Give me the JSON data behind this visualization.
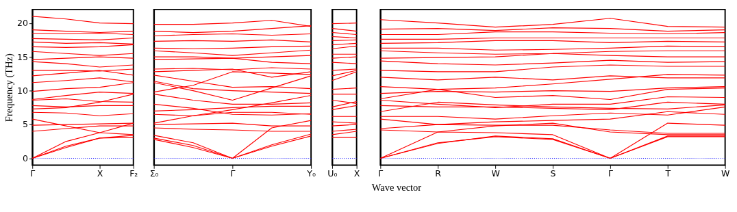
{
  "chart_data": [
    {
      "type": "line",
      "ylabel": "Frequency (THz)",
      "categories": [
        "Γ",
        null,
        "X",
        "F₂"
      ],
      "ylim": [
        -1,
        22
      ],
      "yticks": [
        0,
        5,
        10,
        15,
        20
      ],
      "ref_lines": [
        {
          "axis": "y",
          "value": 0,
          "color": "#0000ff",
          "line_style": "dotted"
        }
      ],
      "series": [
        {
          "color": "#ff0000",
          "values": [
            0,
            1.8,
            3.0,
            3.1
          ]
        },
        {
          "color": "#ff0000",
          "values": [
            0,
            1.6,
            3.0,
            3.4
          ]
        },
        {
          "color": "#ff0000",
          "values": [
            0,
            2.5,
            3.8,
            5.2
          ]
        },
        {
          "color": "#ff0000",
          "values": [
            4.0,
            4.4,
            4.8,
            4.8
          ]
        },
        {
          "color": "#ff0000",
          "values": [
            4.9,
            5.0,
            5.1,
            5.2
          ]
        },
        {
          "color": "#ff0000",
          "values": [
            5.8,
            4.8,
            3.8,
            3.5
          ]
        },
        {
          "color": "#ff0000",
          "values": [
            6.8,
            6.7,
            6.3,
            6.6
          ]
        },
        {
          "color": "#ff0000",
          "values": [
            7.3,
            7.5,
            8.3,
            9.5
          ]
        },
        {
          "color": "#ff0000",
          "values": [
            7.8,
            7.6,
            7.8,
            7.8
          ]
        },
        {
          "color": "#ff0000",
          "values": [
            8.6,
            8.8,
            8.4,
            8.3
          ]
        },
        {
          "color": "#ff0000",
          "values": [
            8.7,
            9.3,
            9.8,
            9.6
          ]
        },
        {
          "color": "#ff0000",
          "values": [
            9.9,
            10.3,
            10.5,
            11.2
          ]
        },
        {
          "color": "#ff0000",
          "values": [
            11.2,
            11.5,
            11.9,
            11.3
          ]
        },
        {
          "color": "#ff0000",
          "values": [
            12.2,
            12.6,
            13.0,
            12.3
          ]
        },
        {
          "color": "#ff0000",
          "values": [
            13.0,
            13.0,
            12.9,
            13.2
          ]
        },
        {
          "color": "#ff0000",
          "values": [
            14.3,
            14.0,
            13.5,
            13.8
          ]
        },
        {
          "color": "#ff0000",
          "values": [
            14.6,
            14.8,
            15.0,
            14.8
          ]
        },
        {
          "color": "#ff0000",
          "values": [
            15.8,
            15.5,
            15.2,
            15.5
          ]
        },
        {
          "color": "#ff0000",
          "values": [
            16.5,
            16.4,
            16.5,
            16.8
          ]
        },
        {
          "color": "#ff0000",
          "values": [
            17.2,
            17.0,
            17.1,
            16.9
          ]
        },
        {
          "color": "#ff0000",
          "values": [
            17.7,
            17.6,
            17.5,
            17.8
          ]
        },
        {
          "color": "#ff0000",
          "values": [
            18.5,
            18.4,
            18.5,
            18.3
          ]
        },
        {
          "color": "#ff0000",
          "values": [
            19.0,
            18.8,
            18.6,
            18.8
          ]
        },
        {
          "color": "#ff0000",
          "values": [
            21.0,
            20.6,
            20.0,
            19.9
          ]
        }
      ]
    },
    {
      "type": "line",
      "tick_labels": "x",
      "categories": [
        "Σ₀",
        null,
        "Γ",
        null,
        "Y₀"
      ],
      "ylim": [
        -1,
        22
      ],
      "yticks": [
        0,
        5,
        10,
        15,
        20
      ],
      "ref_lines": [
        {
          "axis": "y",
          "value": 0,
          "color": "#0000ff",
          "line_style": "dotted"
        }
      ],
      "series": [
        {
          "color": "#ff0000",
          "values": [
            2.8,
            1.6,
            0,
            1.8,
            3.3
          ]
        },
        {
          "color": "#ff0000",
          "values": [
            3.0,
            1.9,
            0,
            2.0,
            3.6
          ]
        },
        {
          "color": "#ff0000",
          "values": [
            3.4,
            2.3,
            0,
            4.5,
            5.6
          ]
        },
        {
          "color": "#ff0000",
          "values": [
            4.5,
            4.3,
            4.2,
            4.0,
            4.0
          ]
        },
        {
          "color": "#ff0000",
          "values": [
            5.0,
            5.1,
            5.2,
            4.8,
            4.8
          ]
        },
        {
          "color": "#ff0000",
          "values": [
            5.2,
            6.3,
            7.2,
            8.2,
            9.3
          ]
        },
        {
          "color": "#ff0000",
          "values": [
            6.5,
            6.3,
            6.8,
            6.8,
            6.5
          ]
        },
        {
          "color": "#ff0000",
          "values": [
            7.0,
            7.2,
            7.5,
            7.7,
            7.7
          ]
        },
        {
          "color": "#ff0000",
          "values": [
            8.0,
            7.4,
            6.5,
            6.4,
            6.6
          ]
        },
        {
          "color": "#ff0000",
          "values": [
            9.5,
            8.6,
            8.0,
            8.0,
            8.2
          ]
        },
        {
          "color": "#ff0000",
          "values": [
            9.8,
            10.8,
            12.8,
            12.6,
            12.4
          ]
        },
        {
          "color": "#ff0000",
          "values": [
            11.2,
            10.0,
            8.6,
            10.4,
            12.2
          ]
        },
        {
          "color": "#ff0000",
          "values": [
            11.4,
            10.3,
            10.0,
            9.8,
            9.6
          ]
        },
        {
          "color": "#ff0000",
          "values": [
            12.3,
            11.4,
            10.5,
            10.6,
            10.3
          ]
        },
        {
          "color": "#ff0000",
          "values": [
            12.8,
            13.0,
            13.2,
            12.0,
            12.8
          ]
        },
        {
          "color": "#ff0000",
          "values": [
            13.2,
            13.3,
            13.1,
            13.4,
            13.2
          ]
        },
        {
          "color": "#ff0000",
          "values": [
            14.6,
            14.7,
            14.8,
            14.2,
            14.0
          ]
        },
        {
          "color": "#ff0000",
          "values": [
            15.0,
            15.0,
            14.8,
            15.0,
            15.2
          ]
        },
        {
          "color": "#ff0000",
          "values": [
            15.9,
            15.6,
            15.2,
            15.6,
            16.0
          ]
        },
        {
          "color": "#ff0000",
          "values": [
            16.3,
            16.2,
            16.3,
            16.5,
            16.6
          ]
        },
        {
          "color": "#ff0000",
          "values": [
            17.3,
            17.4,
            17.3,
            17.5,
            17.2
          ]
        },
        {
          "color": "#ff0000",
          "values": [
            18.1,
            18.3,
            18.4,
            18.2,
            18.4
          ]
        },
        {
          "color": "#ff0000",
          "values": [
            18.8,
            18.6,
            18.8,
            19.2,
            19.6
          ]
        },
        {
          "color": "#ff0000",
          "values": [
            19.8,
            19.8,
            20.0,
            20.4,
            19.5
          ]
        }
      ]
    },
    {
      "type": "line",
      "tick_labels": "x",
      "categories": [
        "U₀",
        "X"
      ],
      "ylim": [
        -1,
        22
      ],
      "yticks": [
        0,
        5,
        10,
        15,
        20
      ],
      "ref_lines": [
        {
          "axis": "y",
          "value": 0,
          "color": "#0000ff",
          "line_style": "dotted"
        }
      ],
      "series": [
        {
          "color": "#ff0000",
          "values": [
            3.1,
            3.1
          ]
        },
        {
          "color": "#ff0000",
          "values": [
            3.5,
            4.0
          ]
        },
        {
          "color": "#ff0000",
          "values": [
            4.0,
            4.3
          ]
        },
        {
          "color": "#ff0000",
          "values": [
            4.8,
            5.0
          ]
        },
        {
          "color": "#ff0000",
          "values": [
            5.4,
            5.2
          ]
        },
        {
          "color": "#ff0000",
          "values": [
            6.2,
            6.2
          ]
        },
        {
          "color": "#ff0000",
          "values": [
            7.2,
            7.8
          ]
        },
        {
          "color": "#ff0000",
          "values": [
            7.6,
            8.4
          ]
        },
        {
          "color": "#ff0000",
          "values": [
            8.6,
            8.1
          ]
        },
        {
          "color": "#ff0000",
          "values": [
            9.5,
            9.5
          ]
        },
        {
          "color": "#ff0000",
          "values": [
            10.2,
            10.4
          ]
        },
        {
          "color": "#ff0000",
          "values": [
            11.5,
            12.8
          ]
        },
        {
          "color": "#ff0000",
          "values": [
            12.2,
            13.0
          ]
        },
        {
          "color": "#ff0000",
          "values": [
            13.0,
            13.2
          ]
        },
        {
          "color": "#ff0000",
          "values": [
            14.2,
            14.0
          ]
        },
        {
          "color": "#ff0000",
          "values": [
            14.8,
            15.0
          ]
        },
        {
          "color": "#ff0000",
          "values": [
            15.4,
            15.4
          ]
        },
        {
          "color": "#ff0000",
          "values": [
            16.2,
            16.6
          ]
        },
        {
          "color": "#ff0000",
          "values": [
            16.8,
            17.0
          ]
        },
        {
          "color": "#ff0000",
          "values": [
            17.4,
            17.5
          ]
        },
        {
          "color": "#ff0000",
          "values": [
            18.0,
            17.8
          ]
        },
        {
          "color": "#ff0000",
          "values": [
            18.6,
            18.3
          ]
        },
        {
          "color": "#ff0000",
          "values": [
            19.2,
            18.8
          ]
        },
        {
          "color": "#ff0000",
          "values": [
            19.9,
            20.0
          ]
        }
      ]
    },
    {
      "type": "line",
      "tick_labels": "x",
      "xlabel": "Wave vector",
      "categories": [
        "Γ",
        "R",
        "W",
        "S",
        "Γ",
        "T",
        "W"
      ],
      "ylim": [
        -1,
        22
      ],
      "yticks": [
        0,
        5,
        10,
        15,
        20
      ],
      "ref_lines": [
        {
          "axis": "y",
          "value": 0,
          "color": "#0000ff",
          "line_style": "dotted"
        }
      ],
      "series": [
        {
          "color": "#ff0000",
          "values": [
            0,
            2.3,
            3.2,
            2.8,
            0,
            3.2,
            3.2
          ]
        },
        {
          "color": "#ff0000",
          "values": [
            0,
            2.2,
            3.3,
            2.9,
            0,
            3.3,
            3.3
          ]
        },
        {
          "color": "#ff0000",
          "values": [
            0,
            3.9,
            3.8,
            3.5,
            0,
            5.2,
            4.9
          ]
        },
        {
          "color": "#ff0000",
          "values": [
            4.2,
            3.9,
            4.8,
            5.2,
            3.9,
            3.5,
            3.5
          ]
        },
        {
          "color": "#ff0000",
          "values": [
            4.4,
            5.0,
            4.9,
            4.9,
            4.2,
            3.7,
            3.7
          ]
        },
        {
          "color": "#ff0000",
          "values": [
            5.8,
            5.0,
            5.4,
            5.6,
            5.8,
            6.9,
            6.5
          ]
        },
        {
          "color": "#ff0000",
          "values": [
            6.2,
            6.2,
            5.8,
            6.3,
            6.7,
            6.4,
            7.6
          ]
        },
        {
          "color": "#ff0000",
          "values": [
            6.9,
            8.3,
            7.9,
            7.6,
            7.4,
            7.3,
            7.9
          ]
        },
        {
          "color": "#ff0000",
          "values": [
            7.8,
            7.6,
            7.6,
            7.4,
            7.2,
            8.3,
            8.0
          ]
        },
        {
          "color": "#ff0000",
          "values": [
            8.6,
            8.0,
            7.5,
            8.0,
            8.0,
            9.1,
            9.0
          ]
        },
        {
          "color": "#ff0000",
          "values": [
            8.8,
            10.2,
            9.0,
            9.3,
            8.7,
            10.2,
            10.4
          ]
        },
        {
          "color": "#ff0000",
          "values": [
            9.6,
            9.9,
            9.8,
            10.0,
            9.9,
            10.4,
            10.6
          ]
        },
        {
          "color": "#ff0000",
          "values": [
            10.6,
            10.2,
            10.4,
            11.0,
            11.7,
            12.4,
            12.3
          ]
        },
        {
          "color": "#ff0000",
          "values": [
            12.0,
            11.6,
            12.0,
            11.6,
            12.2,
            11.9,
            11.9
          ]
        },
        {
          "color": "#ff0000",
          "values": [
            13.0,
            12.8,
            12.8,
            13.5,
            13.8,
            13.6,
            13.6
          ]
        },
        {
          "color": "#ff0000",
          "values": [
            14.4,
            14.0,
            13.8,
            14.1,
            14.5,
            14.2,
            14.3
          ]
        },
        {
          "color": "#ff0000",
          "values": [
            14.8,
            14.9,
            15.0,
            15.5,
            15.2,
            15.0,
            15.0
          ]
        },
        {
          "color": "#ff0000",
          "values": [
            15.9,
            15.6,
            15.4,
            15.5,
            15.8,
            15.9,
            15.9
          ]
        },
        {
          "color": "#ff0000",
          "values": [
            16.3,
            16.3,
            16.0,
            16.1,
            16.3,
            16.6,
            16.5
          ]
        },
        {
          "color": "#ff0000",
          "values": [
            17.0,
            17.1,
            17.4,
            17.4,
            17.1,
            17.3,
            17.2
          ]
        },
        {
          "color": "#ff0000",
          "values": [
            17.6,
            17.6,
            17.8,
            17.8,
            17.8,
            17.8,
            17.8
          ]
        },
        {
          "color": "#ff0000",
          "values": [
            18.3,
            18.3,
            18.7,
            18.7,
            18.5,
            18.4,
            18.6
          ]
        },
        {
          "color": "#ff0000",
          "values": [
            19.1,
            19.2,
            18.9,
            19.3,
            19.2,
            18.8,
            19.0
          ]
        },
        {
          "color": "#ff0000",
          "values": [
            20.5,
            20.0,
            19.4,
            19.8,
            20.7,
            19.5,
            19.4
          ]
        }
      ]
    }
  ]
}
